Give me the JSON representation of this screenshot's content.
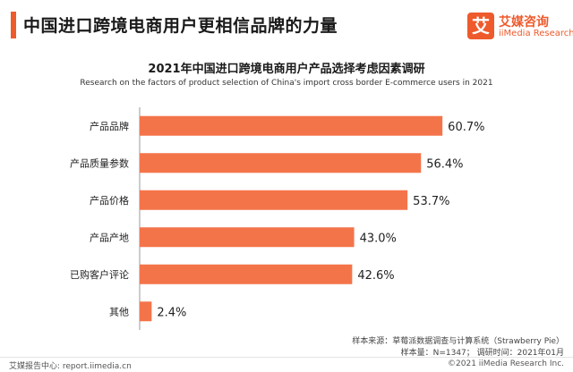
{
  "header": {
    "title": "中国进口跨境电商用户更相信品牌的力量",
    "logo_mark": "艾",
    "logo_cn": "艾媒咨询",
    "logo_en": "iiMedia Research"
  },
  "chart_data": {
    "type": "bar",
    "orientation": "horizontal",
    "title": "2021年中国进口跨境电商用户产品选择考虑因素调研",
    "subtitle": "Research on the factors of product selection of China's import cross border E-commerce users in 2021",
    "categories": [
      "产品品牌",
      "产品质量参数",
      "产品价格",
      "产品产地",
      "已购客户评论",
      "其他"
    ],
    "values": [
      60.7,
      56.4,
      53.7,
      43.0,
      42.6,
      2.4
    ],
    "value_labels": [
      "60.7%",
      "56.4%",
      "53.7%",
      "43.0%",
      "42.6%",
      "2.4%"
    ],
    "color": "#f4744a",
    "xlim": [
      0,
      70
    ],
    "grid": false,
    "legend": "none"
  },
  "source": {
    "line1": "样本来源：草莓派数据调查与计算系统（Strawberry Pie）",
    "line2": "样本量：N=1347；  调研时间：2021年01月"
  },
  "footer": {
    "left": "艾媒报告中心: report.iimedia.cn",
    "right": "©2021  iiMedia Research  Inc."
  }
}
